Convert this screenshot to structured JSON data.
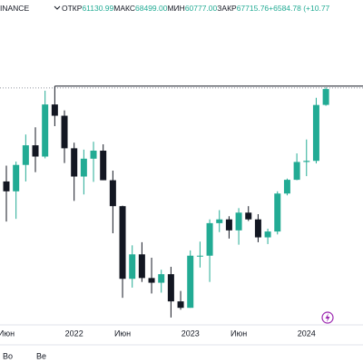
{
  "header": {
    "symbol": "INANCE",
    "items": [
      {
        "label": "ОТКР",
        "value": "61130.99"
      },
      {
        "label": "МАКС",
        "value": "68499.00"
      },
      {
        "label": "МИН",
        "value": "60777.00"
      },
      {
        "label": "ЗАКР",
        "value": "67715.76"
      }
    ],
    "change": "+6584.78 (+10.77"
  },
  "chart_data": {
    "type": "candlestick",
    "log_scale": true,
    "ylim": [
      14780,
      107000
    ],
    "up_color": "#22ab94",
    "down_color": "#131722",
    "categories": [
      "Июн",
      null,
      null,
      null,
      null,
      null,
      null,
      "2022",
      null,
      null,
      null,
      null,
      "Июн",
      null,
      null,
      null,
      null,
      null,
      null,
      "2023",
      null,
      null,
      null,
      null,
      "Июн",
      null,
      null,
      null,
      null,
      null,
      null,
      "2024",
      null,
      null
    ],
    "open": [
      37300,
      35000,
      41500,
      47100,
      43800,
      61300,
      57000,
      46200,
      38500,
      43200,
      45500,
      37600,
      31800,
      19900,
      23300,
      20000,
      19400,
      20500,
      17200,
      16500,
      23100,
      23100,
      28500,
      29200,
      27200,
      30500,
      29200,
      26000,
      27000,
      34500,
      37700,
      42300,
      42600,
      61130.99
    ],
    "high": [
      41300,
      42400,
      50500,
      52900,
      67000,
      69000,
      59000,
      47900,
      45800,
      48200,
      47400,
      40000,
      31900,
      24700,
      25200,
      22800,
      21100,
      21500,
      18400,
      23900,
      25300,
      29200,
      31000,
      29800,
      31400,
      31800,
      30200,
      27500,
      35000,
      38000,
      44700,
      48900,
      64000,
      68499
    ],
    "low": [
      28800,
      29300,
      37300,
      39600,
      43300,
      53300,
      42000,
      32900,
      34300,
      37200,
      37600,
      26700,
      17600,
      18800,
      19500,
      18100,
      18200,
      15500,
      16300,
      16500,
      21400,
      19500,
      26900,
      25800,
      24800,
      28900,
      25200,
      24900,
      26500,
      34100,
      37600,
      38600,
      41900,
      60777
    ],
    "close": [
      35000,
      41500,
      47100,
      43800,
      61300,
      57000,
      46200,
      38500,
      43200,
      45500,
      37600,
      31800,
      19900,
      23300,
      20000,
      19400,
      20500,
      17200,
      16500,
      23100,
      23100,
      28500,
      29200,
      27200,
      30500,
      29200,
      26000,
      27000,
      34500,
      37700,
      42300,
      42600,
      61100,
      67715.76
    ],
    "hline": {
      "value": 69000,
      "start": 5
    }
  },
  "footer": {
    "tabs": [
      "Во",
      "Ве"
    ]
  }
}
